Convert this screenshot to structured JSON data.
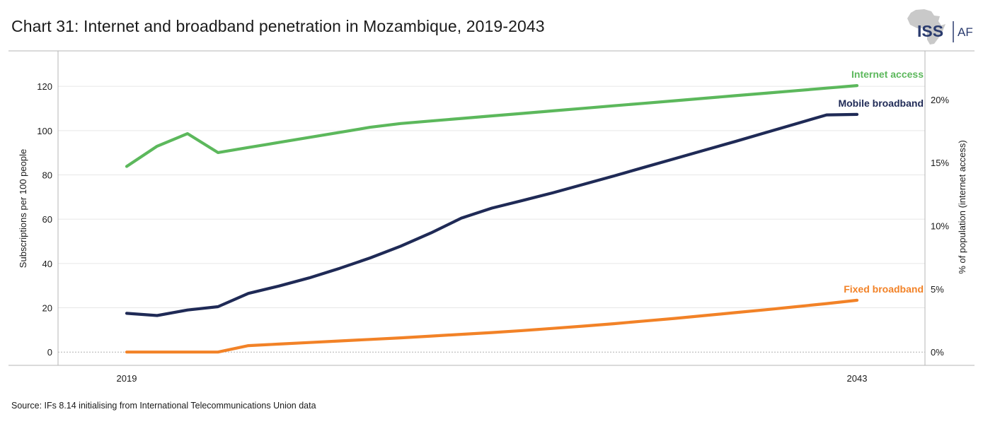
{
  "title": "Chart 31: Internet and broadband penetration in Mozambique, 2019-2043",
  "logo": {
    "org_label": "ISS",
    "sub_label": "AFI",
    "icon": "africa-map-icon"
  },
  "source": "Source: IFs 8.14 initialising from International Telecommunications Union data",
  "colors": {
    "internet": "#5cb85c",
    "mobile": "#1f2a56",
    "fixed": "#f28227",
    "grid": "#e6e6e6",
    "zero": "#b0b0b0"
  },
  "chart_data": {
    "type": "line",
    "title": "Chart 31: Internet and broadband penetration in Mozambique, 2019-2043",
    "xlabel": "",
    "ylabel": "Subscriptions per 100 people",
    "y2label": "% of population (internet access)",
    "xlim": [
      2019,
      2043
    ],
    "ylim": [
      -6,
      136
    ],
    "y2lim": [
      -1.05,
      23.85
    ],
    "x_tick_labels": [
      "2019",
      "2043"
    ],
    "y_ticks": [
      0,
      20,
      40,
      60,
      80,
      100,
      120
    ],
    "y_tick_labels": [
      "0",
      "20",
      "40",
      "60",
      "80",
      "100",
      "120"
    ],
    "y2_ticks": [
      0,
      5,
      10,
      15,
      20
    ],
    "y2_tick_labels": [
      "0%",
      "5%",
      "10%",
      "15%",
      "20%"
    ],
    "x": [
      2019,
      2020,
      2021,
      2022,
      2023,
      2024,
      2025,
      2026,
      2027,
      2028,
      2029,
      2030,
      2031,
      2032,
      2033,
      2034,
      2035,
      2036,
      2037,
      2038,
      2039,
      2040,
      2041,
      2042,
      2043
    ],
    "series": [
      {
        "name": "Internet access",
        "axis": "right",
        "color": "#5cb85c",
        "label": "Internet access",
        "values": [
          14.7,
          16.3,
          17.3,
          15.8,
          16.2,
          16.6,
          17.0,
          17.4,
          17.8,
          18.1,
          18.3,
          18.5,
          18.7,
          18.9,
          19.1,
          19.3,
          19.5,
          19.7,
          19.9,
          20.1,
          20.3,
          20.5,
          20.7,
          20.9,
          21.1
        ]
      },
      {
        "name": "Mobile broadband",
        "axis": "left",
        "color": "#1f2a56",
        "label": "Mobile broadband",
        "values": [
          17.5,
          16.5,
          19.0,
          20.5,
          26.5,
          29.8,
          33.5,
          37.8,
          42.5,
          47.8,
          53.8,
          60.5,
          65.0,
          68.4,
          71.9,
          75.7,
          79.5,
          83.4,
          87.3,
          91.2,
          95.1,
          99.1,
          103.1,
          107.1,
          107.3
        ]
      },
      {
        "name": "Fixed broadband",
        "axis": "left",
        "color": "#f28227",
        "label": "Fixed broadband",
        "values": [
          0,
          0,
          0,
          0,
          2.9,
          3.6,
          4.3,
          5.0,
          5.7,
          6.4,
          7.2,
          8.0,
          8.8,
          9.7,
          10.7,
          11.7,
          12.8,
          14.0,
          15.2,
          16.5,
          17.8,
          19.1,
          20.5,
          21.9,
          23.4
        ]
      }
    ]
  }
}
